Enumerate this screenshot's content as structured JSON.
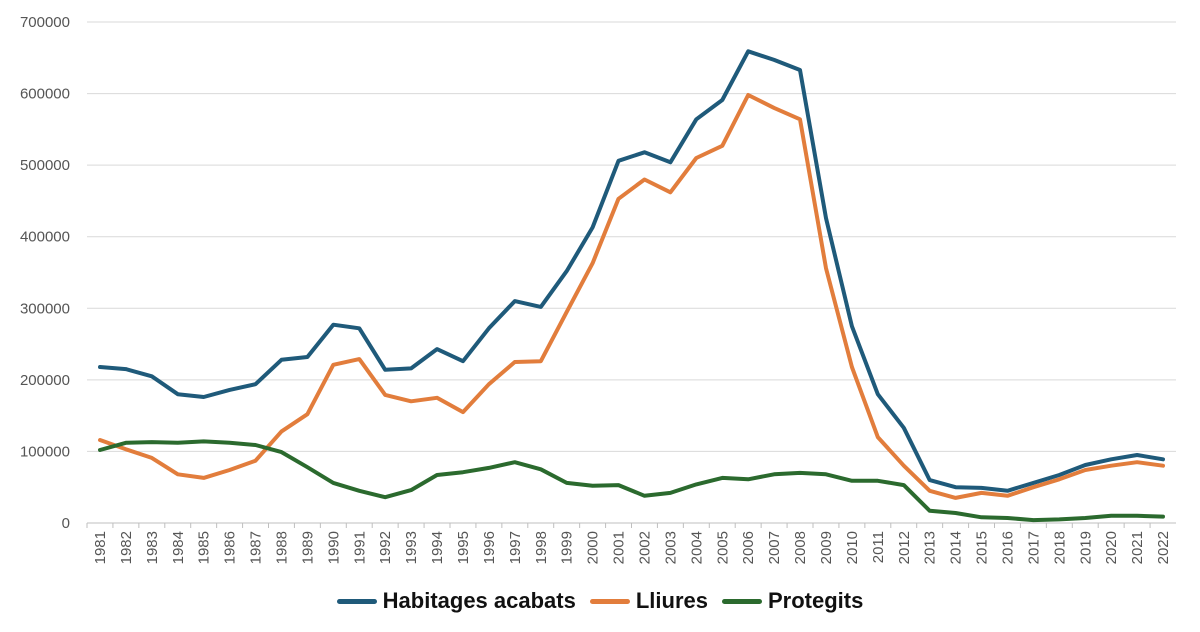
{
  "chart_data": {
    "type": "line",
    "title": "",
    "xlabel": "",
    "ylabel": "",
    "ylim": [
      0,
      700000
    ],
    "yticks": [
      "0",
      "100000",
      "200000",
      "300000",
      "400000",
      "500000",
      "600000",
      "700000"
    ],
    "grid": true,
    "legend_position": "bottom",
    "x": [
      1981,
      1982,
      1983,
      1984,
      1985,
      1986,
      1987,
      1988,
      1989,
      1990,
      1991,
      1992,
      1993,
      1994,
      1995,
      1996,
      1997,
      1998,
      1999,
      2000,
      2001,
      2002,
      2003,
      2004,
      2005,
      2006,
      2007,
      2008,
      2009,
      2010,
      2011,
      2012,
      2013,
      2014,
      2015,
      2016,
      2017,
      2018,
      2019,
      2020,
      2021,
      2022
    ],
    "series": [
      {
        "name": "Habitages acabats",
        "color": "#1f5a7a",
        "values": [
          218000,
          215000,
          205000,
          180000,
          176000,
          186000,
          194000,
          228000,
          232000,
          277000,
          272000,
          214000,
          216000,
          243000,
          226000,
          272000,
          310000,
          302000,
          352000,
          413000,
          506000,
          518000,
          504000,
          564000,
          591000,
          659000,
          647000,
          633000,
          426000,
          275000,
          180000,
          133000,
          60000,
          50000,
          49000,
          45000,
          56000,
          67000,
          81000,
          89000,
          95000,
          89000
        ]
      },
      {
        "name": "Lliures",
        "color": "#e27d3c",
        "values": [
          116000,
          103000,
          91000,
          68000,
          63000,
          74000,
          87000,
          128000,
          152000,
          221000,
          229000,
          179000,
          170000,
          175000,
          155000,
          194000,
          225000,
          226000,
          295000,
          363000,
          453000,
          480000,
          462000,
          510000,
          527000,
          598000,
          580000,
          564000,
          356000,
          218000,
          120000,
          80000,
          45000,
          35000,
          42000,
          38000,
          50000,
          61000,
          74000,
          80000,
          85000,
          80000
        ]
      },
      {
        "name": "Protegits",
        "color": "#2b6a2e",
        "values": [
          102000,
          112000,
          113000,
          112000,
          114000,
          112000,
          109000,
          99000,
          78000,
          56000,
          45000,
          36000,
          46000,
          67000,
          71000,
          77000,
          85000,
          75000,
          56000,
          52000,
          53000,
          38000,
          42000,
          54000,
          63000,
          61000,
          68000,
          70000,
          68000,
          59000,
          59000,
          53000,
          17000,
          14000,
          8000,
          7000,
          4000,
          5000,
          7000,
          10000,
          10000,
          9000
        ]
      }
    ]
  }
}
